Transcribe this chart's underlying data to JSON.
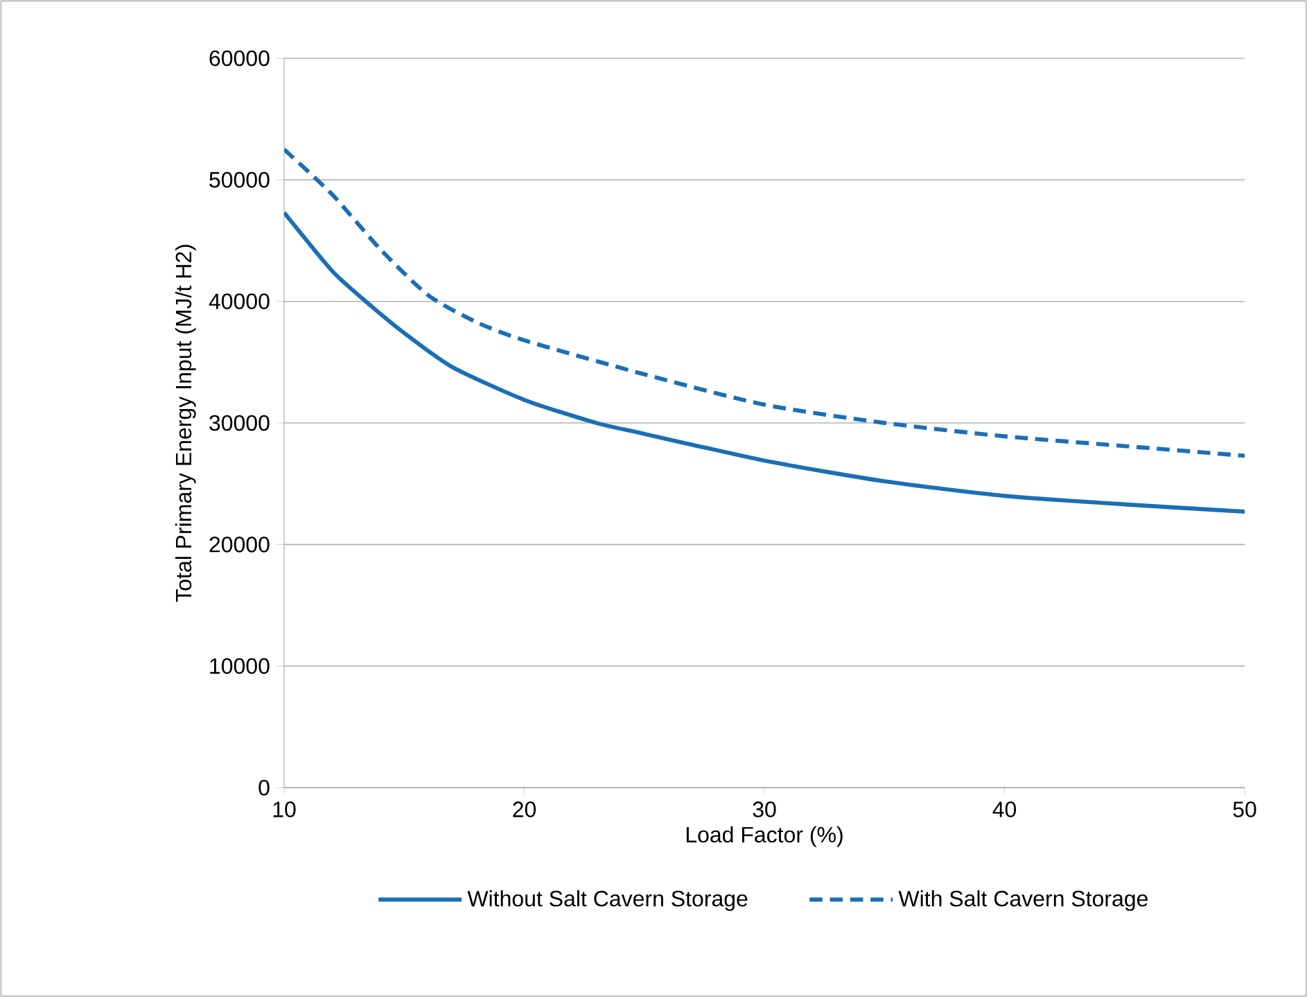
{
  "chart_data": {
    "type": "line",
    "xlabel": "Load Factor (%)",
    "ylabel": "Total Primary Energy Input (MJ/t H2)",
    "xlim": [
      10,
      50
    ],
    "xticks": [
      10,
      20,
      30,
      40,
      50
    ],
    "ylim": [
      0,
      60000
    ],
    "yticks": [
      0,
      10000,
      20000,
      30000,
      40000,
      50000,
      60000
    ],
    "grid": "y",
    "legend": "bottom",
    "marker": "none",
    "series": [
      {
        "name": "Without Salt Cavern Storage",
        "color": "#1a6fb7",
        "line_style": "solid",
        "x": [
          10,
          12,
          13.4,
          15,
          17,
          20,
          23,
          25,
          30,
          35,
          40,
          45,
          50
        ],
        "values": [
          47300,
          42500,
          40000,
          37400,
          34600,
          31900,
          30000,
          29100,
          26900,
          25200,
          24000,
          23300,
          22700
        ]
      },
      {
        "name": "With Salt Cavern Storage",
        "color": "#1a6fb7",
        "line_style": "dashed",
        "x": [
          10,
          12,
          14,
          16,
          18,
          20,
          25,
          30,
          35,
          40,
          45,
          50
        ],
        "values": [
          52500,
          48800,
          44300,
          40500,
          38300,
          36800,
          34000,
          31500,
          30000,
          28900,
          28100,
          27300
        ]
      }
    ]
  }
}
